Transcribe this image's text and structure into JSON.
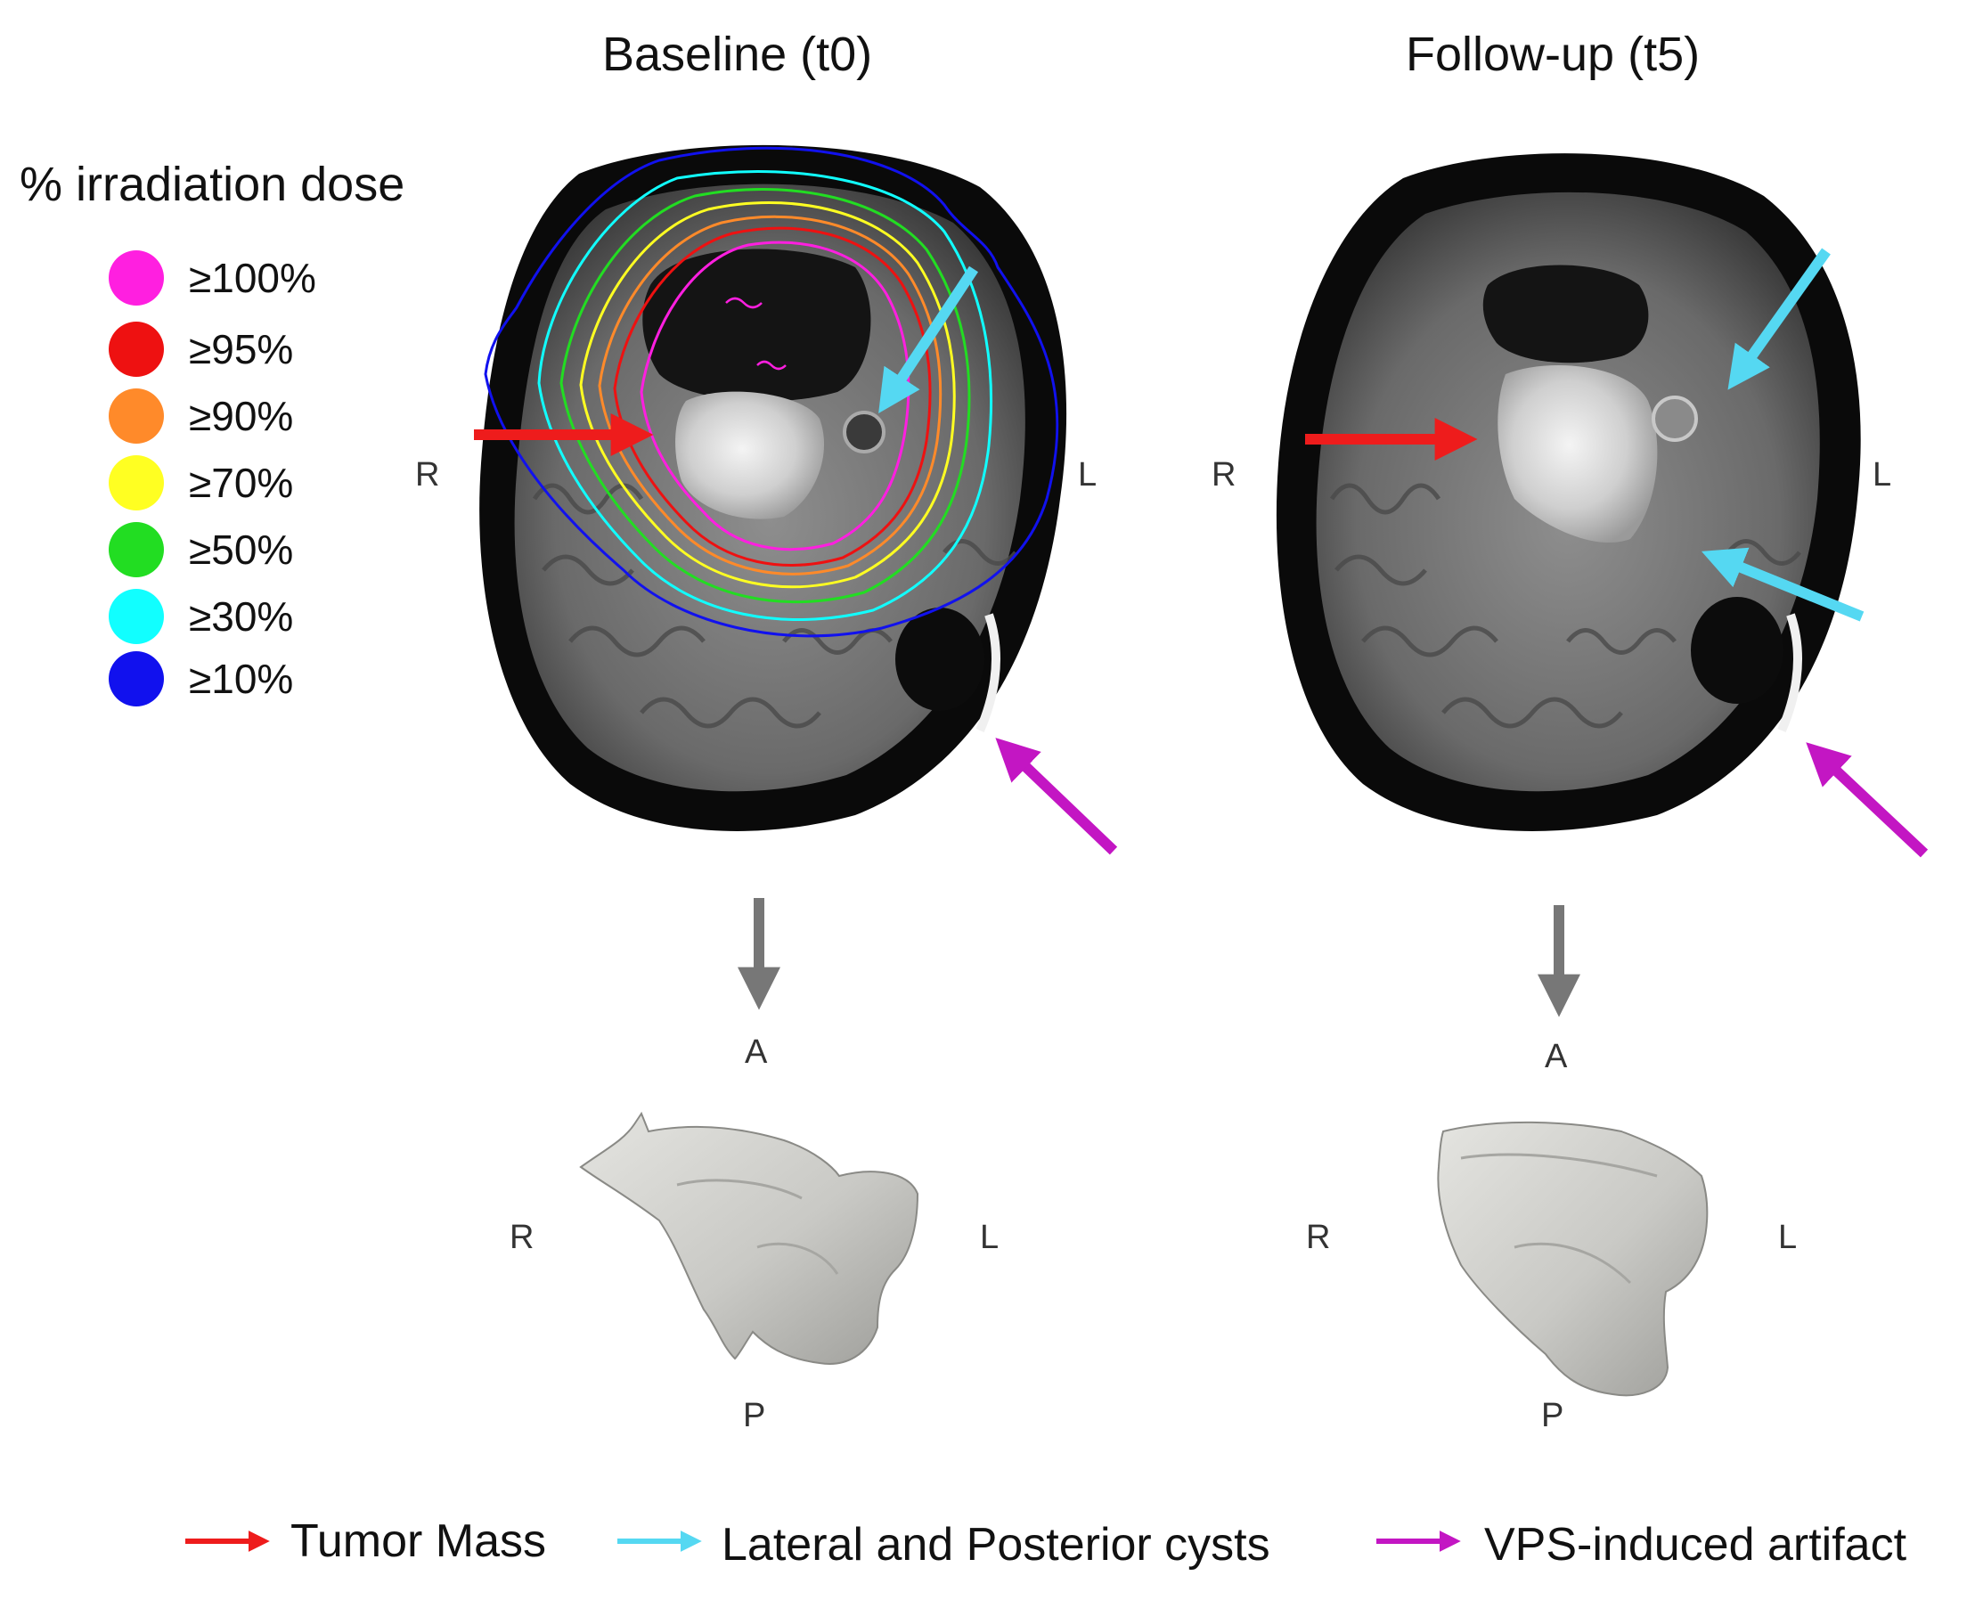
{
  "panels": {
    "baseline": {
      "title": "Baseline (t0)"
    },
    "followup": {
      "title": "Follow-up (t5)"
    }
  },
  "orientation": {
    "right": "R",
    "left": "L",
    "anterior": "A",
    "posterior": "P"
  },
  "dose_legend": {
    "title": "% irradiation dose",
    "items": [
      {
        "label": "≥100%",
        "color": "#ff1fe0"
      },
      {
        "label": "≥95%",
        "color": "#ee1111"
      },
      {
        "label": "≥90%",
        "color": "#ff8a2a"
      },
      {
        "label": "≥70%",
        "color": "#ffff22"
      },
      {
        "label": "≥50%",
        "color": "#22dd22"
      },
      {
        "label": "≥30%",
        "color": "#11ffff"
      },
      {
        "label": "≥10%",
        "color": "#1111ee"
      }
    ]
  },
  "arrow_key": [
    {
      "label": "Tumor Mass",
      "color": "#ee1c1c"
    },
    {
      "label": "Lateral and Posterior cysts",
      "color": "#55d8f2"
    },
    {
      "label": "VPS-induced artifact",
      "color": "#c316c3"
    }
  ]
}
